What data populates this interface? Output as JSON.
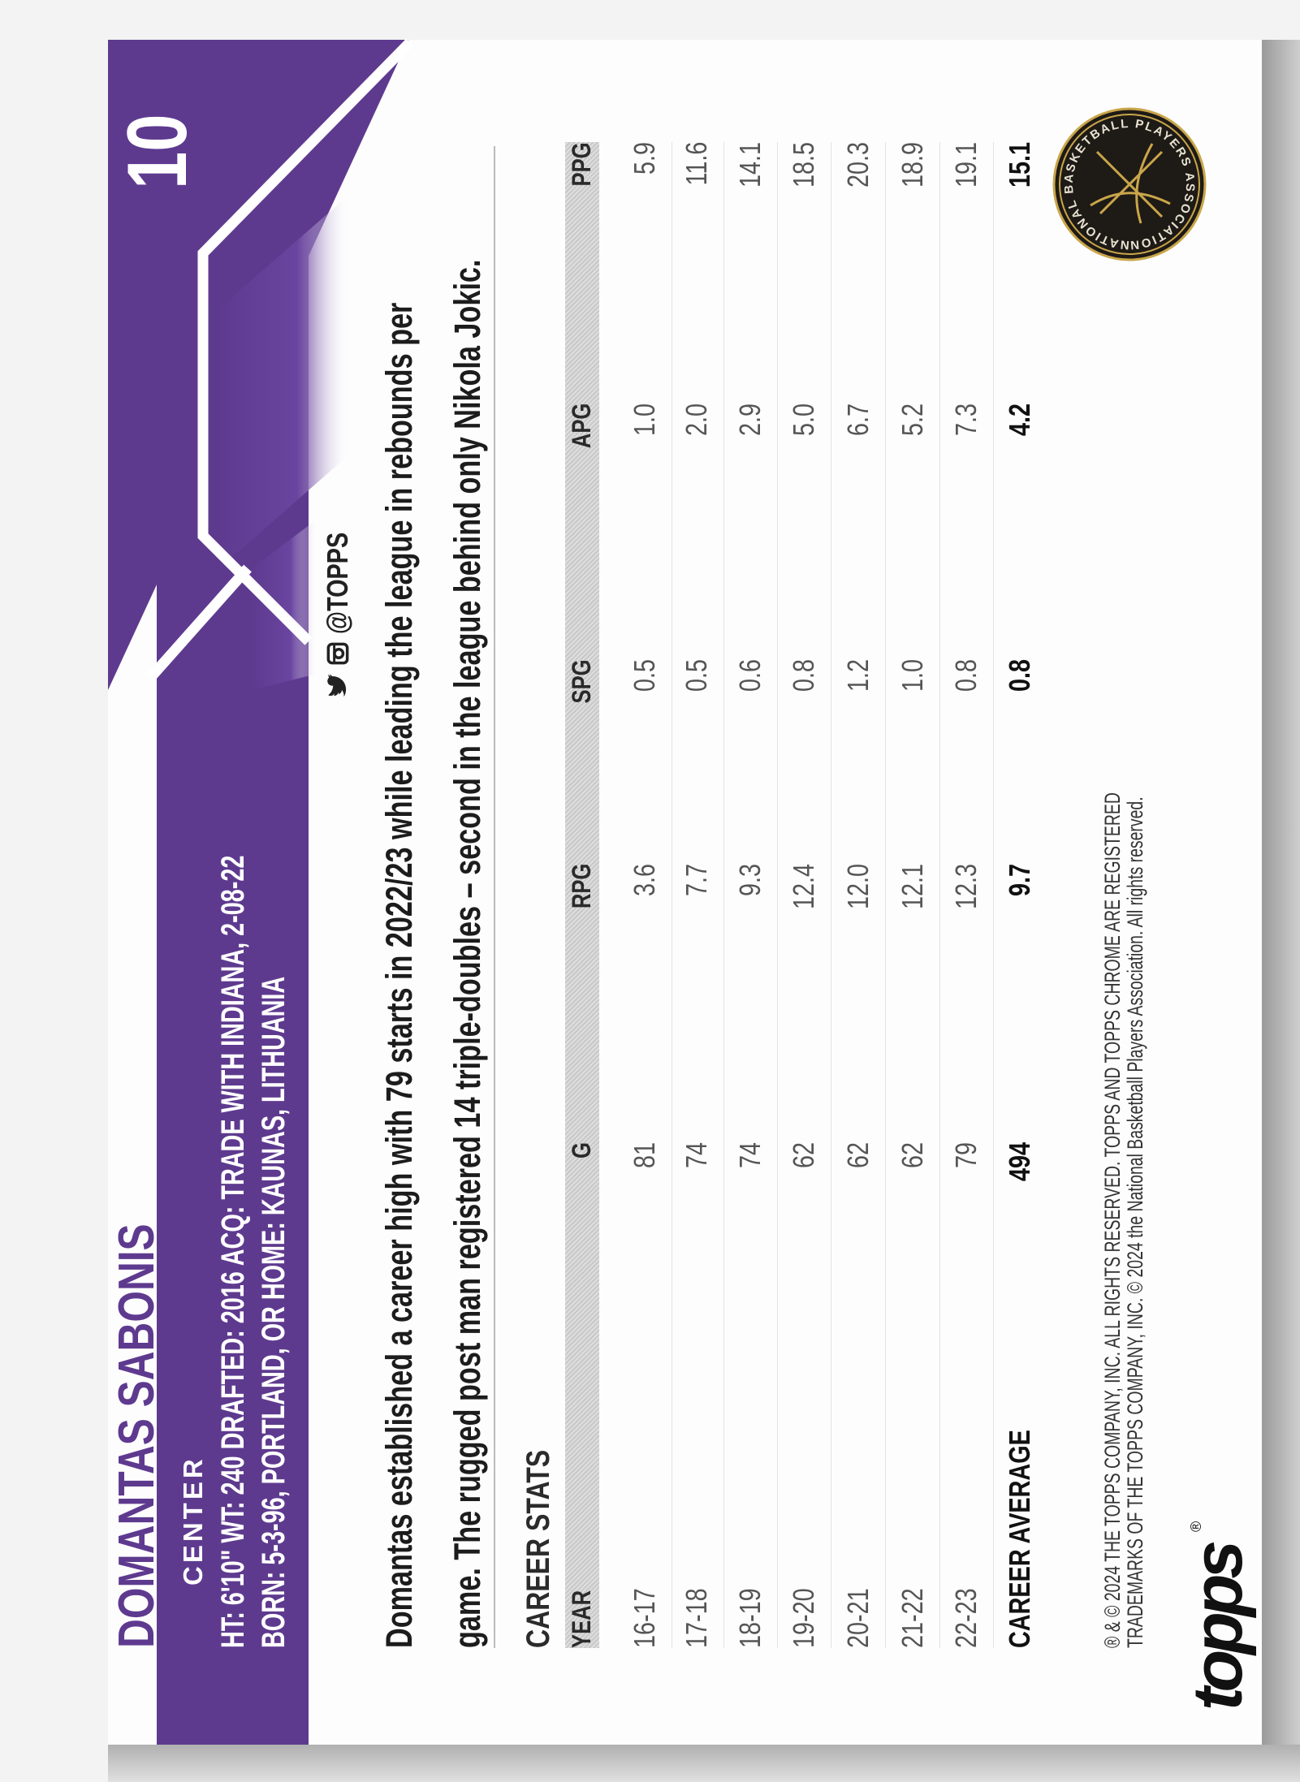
{
  "card": {
    "player_name": "DOMANTAS SABONIS",
    "card_number": "10",
    "position": "CENTER",
    "bio_line1": "HT: 6'10\"  WT: 240  DRAFTED: 2016  ACQ: TRADE WITH INDIANA, 2-08-22",
    "bio_line2": "BORN: 5-3-96, PORTLAND, OR  HOME: KAUNAS, LITHUANIA",
    "social_handle": "@TOPPS",
    "social_icons": [
      "twitter-icon",
      "instagram-icon"
    ],
    "blurb_line1": "Domantas established a career high with 79 starts in 2022/23 while leading the league in rebounds per",
    "blurb_line2": "game. The rugged post man registered 14 triple-doubles – second in the league behind only Nikola Jokic.",
    "accent_color": "#5e3a8f"
  },
  "stats": {
    "title": "CAREER STATS",
    "headers": [
      "YEAR",
      "G",
      "RPG",
      "SPG",
      "APG",
      "PPG"
    ],
    "rows": [
      [
        "16-17",
        "81",
        "3.6",
        "0.5",
        "1.0",
        "5.9"
      ],
      [
        "17-18",
        "74",
        "7.7",
        "0.5",
        "2.0",
        "11.6"
      ],
      [
        "18-19",
        "74",
        "9.3",
        "0.6",
        "2.9",
        "14.1"
      ],
      [
        "19-20",
        "62",
        "12.4",
        "0.8",
        "5.0",
        "18.5"
      ],
      [
        "20-21",
        "62",
        "12.0",
        "1.2",
        "6.7",
        "20.3"
      ],
      [
        "21-22",
        "62",
        "12.1",
        "1.0",
        "5.2",
        "18.9"
      ],
      [
        "22-23",
        "79",
        "12.3",
        "0.8",
        "7.3",
        "19.1"
      ]
    ],
    "career": [
      "CAREER AVERAGE",
      "494",
      "9.7",
      "0.8",
      "4.2",
      "15.1"
    ]
  },
  "footer": {
    "copyright_line1": "® & © 2024 THE TOPPS COMPANY, INC. ALL RIGHTS RESERVED. TOPPS AND TOPPS CHROME ARE REGISTERED",
    "copyright_line2": "TRADEMARKS OF THE TOPPS COMPANY, INC. © 2024 the National Basketball Players Association. All rights reserved.",
    "brand_logo": "topps",
    "brand_reg": "®",
    "nbpa_logo_text": "NATIONAL BASKETBALL PLAYERS ASSOCIATION"
  }
}
